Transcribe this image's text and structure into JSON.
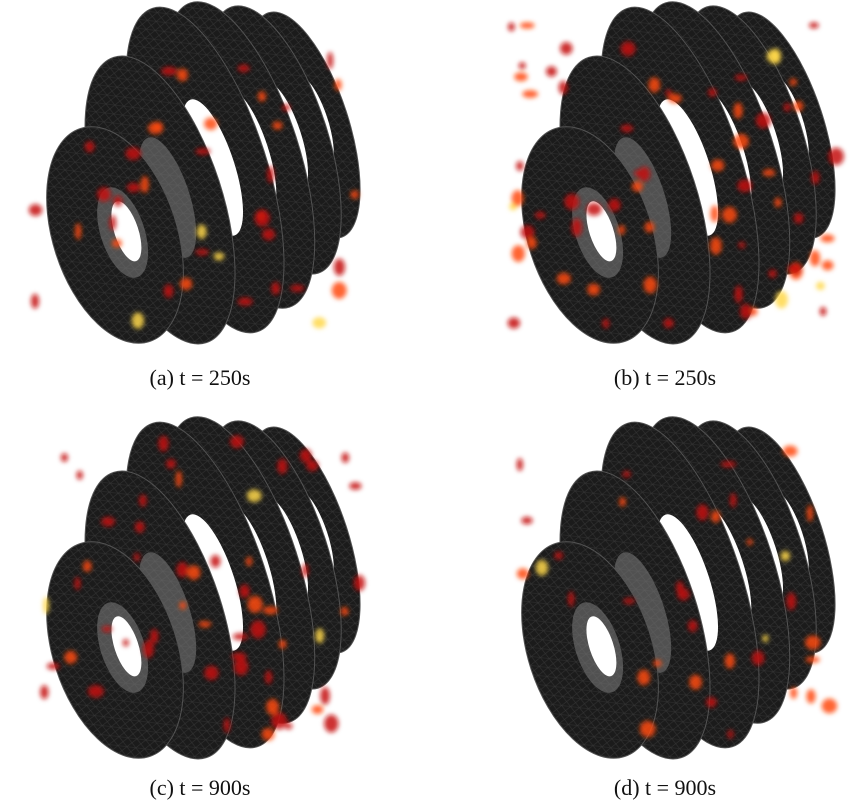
{
  "panels": [
    {
      "caption": "(a) t = 250s"
    },
    {
      "caption": "(b) t = 250s"
    },
    {
      "caption": "(c) t = 900s"
    },
    {
      "caption": "(d) t = 900s"
    }
  ]
}
